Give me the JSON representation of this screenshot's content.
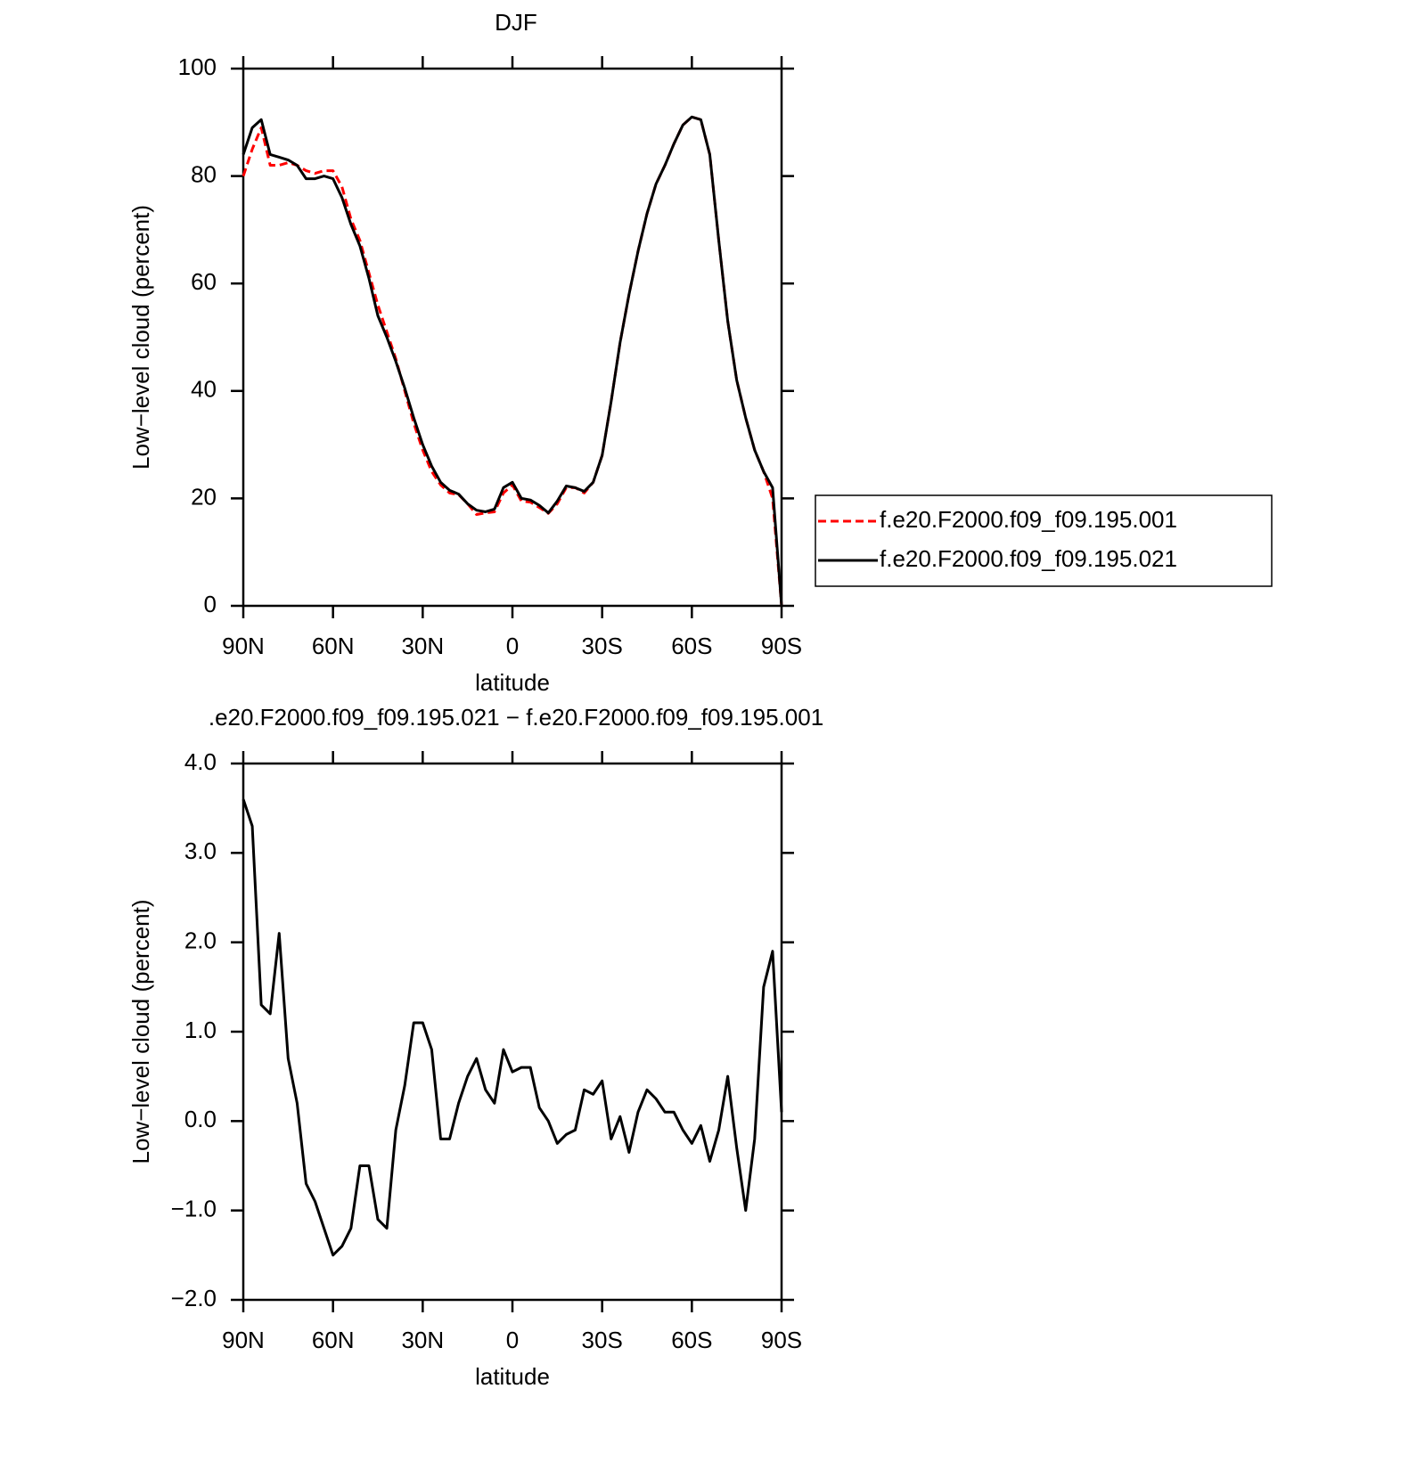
{
  "chart_data": [
    {
      "type": "line",
      "title": "DJF",
      "xlabel": "latitude",
      "ylabel": "Low−level cloud (percent)",
      "x": [
        90,
        87,
        84,
        81,
        78,
        75,
        72,
        69,
        66,
        63,
        60,
        57,
        54,
        51,
        48,
        45,
        42,
        39,
        36,
        33,
        30,
        27,
        24,
        21,
        18,
        15,
        12,
        9,
        6,
        3,
        0,
        -3,
        -6,
        -9,
        -12,
        -15,
        -18,
        -21,
        -24,
        -27,
        -30,
        -33,
        -36,
        -39,
        -42,
        -45,
        -48,
        -51,
        -54,
        -57,
        -60,
        -63,
        -66,
        -69,
        -72,
        -75,
        -78,
        -81,
        -84,
        -87,
        -90
      ],
      "xlim": [
        90,
        -90
      ],
      "xticks": [
        {
          "value": 90,
          "label": "90N"
        },
        {
          "value": 60,
          "label": "60N"
        },
        {
          "value": 30,
          "label": "30N"
        },
        0,
        {
          "value": -30,
          "label": "30S"
        },
        {
          "value": -60,
          "label": "60S"
        },
        {
          "value": -90,
          "label": "90S"
        }
      ],
      "ylim": [
        0,
        100
      ],
      "yticks": [
        0,
        20,
        40,
        60,
        80,
        100
      ],
      "legend": "right",
      "series": [
        {
          "name": "f.e20.F2000.f09_f09.195.001",
          "color": "#ff0000",
          "linestyle": "dashed",
          "values": [
            80,
            85,
            89,
            82,
            82,
            82.5,
            82,
            81,
            80.5,
            81,
            81,
            78,
            72,
            68,
            62,
            56,
            51,
            46,
            40,
            34,
            29,
            25,
            22.5,
            21,
            20.7,
            19,
            17,
            17.3,
            17.5,
            21,
            22.5,
            19.5,
            19.3,
            18.3,
            17.2,
            19,
            22,
            22,
            21,
            23,
            28,
            38,
            49,
            58,
            66,
            73,
            78.5,
            82,
            86,
            89.5,
            91,
            90.5,
            84,
            68,
            53,
            42,
            35,
            29,
            25,
            20,
            0
          ]
        },
        {
          "name": "f.e20.F2000.f09_f09.195.021",
          "color": "#000000",
          "linestyle": "solid",
          "values": [
            84,
            89,
            90.5,
            84,
            83.5,
            83,
            82,
            79.5,
            79.5,
            80,
            79.5,
            76,
            71,
            67,
            61,
            54,
            50,
            45.5,
            40.5,
            35,
            30,
            26,
            23,
            21.5,
            20.8,
            19,
            17.8,
            17.5,
            18,
            22,
            23,
            20,
            19.7,
            18.7,
            17.3,
            19.5,
            22.3,
            22,
            21.3,
            23,
            28,
            38,
            49,
            58,
            66,
            73,
            78.5,
            82,
            86,
            89.5,
            91,
            90.5,
            84,
            68,
            53,
            42,
            35,
            29,
            25,
            22,
            0
          ]
        }
      ]
    },
    {
      "type": "line",
      "title": ".e20.F2000.f09_f09.195.021 − f.e20.F2000.f09_f09.195.001",
      "xlabel": "latitude",
      "ylabel": "Low−level cloud (percent)",
      "x": [
        90,
        87,
        84,
        81,
        78,
        75,
        72,
        69,
        66,
        63,
        60,
        57,
        54,
        51,
        48,
        45,
        42,
        39,
        36,
        33,
        30,
        27,
        24,
        21,
        18,
        15,
        12,
        9,
        6,
        3,
        0,
        -3,
        -6,
        -9,
        -12,
        -15,
        -18,
        -21,
        -24,
        -27,
        -30,
        -33,
        -36,
        -39,
        -42,
        -45,
        -48,
        -51,
        -54,
        -57,
        -60,
        -63,
        -66,
        -69,
        -72,
        -75,
        -78,
        -81,
        -84,
        -87,
        -90
      ],
      "xlim": [
        90,
        -90
      ],
      "xticks": [
        {
          "value": 90,
          "label": "90N"
        },
        {
          "value": 60,
          "label": "60N"
        },
        {
          "value": 30,
          "label": "30N"
        },
        0,
        {
          "value": -30,
          "label": "30S"
        },
        {
          "value": -60,
          "label": "60S"
        },
        {
          "value": -90,
          "label": "90S"
        }
      ],
      "ylim": [
        -2,
        4
      ],
      "yticks": [
        {
          "value": -2,
          "label": "−2.0"
        },
        {
          "value": -1,
          "label": "−1.0"
        },
        {
          "value": 0,
          "label": "0.0"
        },
        {
          "value": 1,
          "label": "1.0"
        },
        {
          "value": 2,
          "label": "2.0"
        },
        {
          "value": 3,
          "label": "3.0"
        },
        {
          "value": 4,
          "label": "4.0"
        }
      ],
      "series": [
        {
          "name": null,
          "color": "#000000",
          "linestyle": "solid",
          "values": [
            3.6,
            3.3,
            1.3,
            1.2,
            2.1,
            0.7,
            0.2,
            -0.7,
            -0.9,
            -1.2,
            -1.5,
            -1.4,
            -1.2,
            -0.5,
            -0.5,
            -1.1,
            -1.2,
            -0.1,
            0.4,
            1.1,
            1.1,
            0.8,
            -0.2,
            -0.2,
            0.2,
            0.5,
            0.7,
            0.35,
            0.2,
            0.8,
            0.55,
            0.6,
            0.6,
            0.15,
            0,
            -0.25,
            -0.15,
            -0.1,
            0.35,
            0.3,
            0.45,
            -0.2,
            0.05,
            -0.35,
            0.1,
            0.35,
            0.25,
            0.1,
            0.1,
            -0.1,
            -0.25,
            -0.05,
            -0.45,
            -0.1,
            0.5,
            -0.3,
            -1,
            -0.2,
            1.5,
            1.9,
            0.1
          ]
        }
      ]
    }
  ]
}
